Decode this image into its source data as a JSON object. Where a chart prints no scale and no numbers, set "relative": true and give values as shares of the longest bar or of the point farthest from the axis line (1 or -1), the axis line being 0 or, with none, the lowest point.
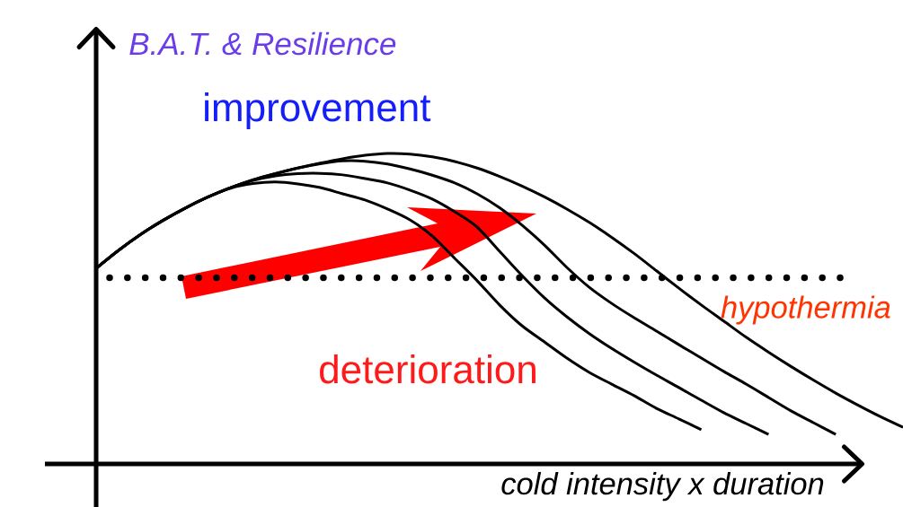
{
  "chart_data": {
    "type": "line",
    "relative": true,
    "ylabel": "B.A.T. & Resilience",
    "xlabel": "cold intensity x duration",
    "annotations": [
      "improvement",
      "deterioration"
    ],
    "categories": [
      null,
      null,
      null,
      null,
      null,
      null,
      null,
      null,
      null,
      null,
      null,
      null,
      null,
      null,
      null,
      null,
      null,
      null,
      null,
      null,
      null,
      null,
      null,
      null,
      null,
      null,
      null,
      null,
      null,
      null,
      null,
      null,
      null,
      null,
      null,
      null,
      null
    ],
    "series": [
      {
        "color": "#000000",
        "values": [
          0.63,
          0.688,
          0.74,
          0.785,
          0.825,
          0.86,
          0.888,
          0.903,
          0.908,
          0.902,
          0.89,
          0.87,
          0.85,
          0.821,
          0.786,
          0.734,
          0.662,
          0.59,
          0.512,
          0.445,
          0.393,
          0.341,
          0.295,
          0.257,
          0.22,
          0.179,
          0.145,
          0.11,
          null,
          null,
          null,
          null,
          null,
          null,
          null,
          null,
          null
        ]
      },
      {
        "color": "#000000",
        "values": [
          0.63,
          0.688,
          0.74,
          0.785,
          0.825,
          0.86,
          0.89,
          0.913,
          0.928,
          0.935,
          0.936,
          0.931,
          0.919,
          0.905,
          0.882,
          0.853,
          0.812,
          0.763,
          0.685,
          0.607,
          0.535,
          0.474,
          0.42,
          0.372,
          0.328,
          0.286,
          0.246,
          0.205,
          0.165,
          0.13,
          0.095,
          null,
          null,
          null,
          null,
          null,
          null
        ]
      },
      {
        "color": "#000000",
        "values": [
          0.63,
          0.688,
          0.74,
          0.785,
          0.825,
          0.86,
          0.89,
          0.915,
          0.935,
          0.953,
          0.967,
          0.976,
          0.975,
          0.966,
          0.95,
          0.93,
          0.905,
          0.87,
          0.825,
          0.769,
          0.705,
          0.633,
          0.569,
          0.517,
          0.471,
          0.428,
          0.384,
          0.341,
          0.298,
          0.257,
          0.214,
          0.171,
          0.133,
          0.095,
          null,
          null,
          null
        ]
      },
      {
        "color": "#000000",
        "values": [
          0.63,
          0.688,
          0.74,
          0.785,
          0.825,
          0.86,
          0.89,
          0.915,
          0.935,
          0.953,
          0.969,
          0.983,
          0.994,
          1.0,
          0.998,
          0.989,
          0.974,
          0.953,
          0.926,
          0.895,
          0.86,
          0.821,
          0.778,
          0.73,
          0.678,
          0.622,
          0.566,
          0.512,
          0.46,
          0.408,
          0.36,
          0.314,
          0.27,
          0.228,
          0.189,
          0.152,
          0.118
        ]
      }
    ],
    "ref_lines": [
      {
        "axis": "y",
        "value": 0.6,
        "label": "hypothermia",
        "color": "#000000",
        "line_style": "dotted"
      }
    ],
    "marker": "none",
    "line_style": "solid"
  }
}
